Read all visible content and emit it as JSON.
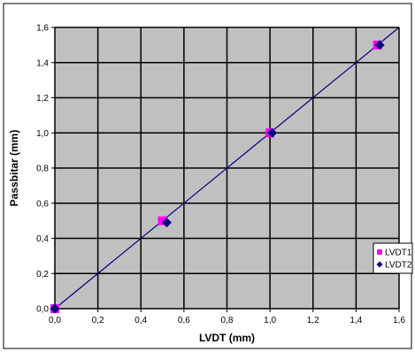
{
  "chart_data": {
    "type": "scatter",
    "xlabel": "LVDT (mm)",
    "ylabel": "Passbitar (mm)",
    "xlim": [
      0,
      1.6
    ],
    "ylim": [
      0,
      1.6
    ],
    "x_ticks": [
      "0,0",
      "0,2",
      "0,4",
      "0,6",
      "0,8",
      "1,0",
      "1,2",
      "1,4",
      "1,6"
    ],
    "y_ticks": [
      "0,0",
      "0,2",
      "0,4",
      "0,6",
      "0,8",
      "1,0",
      "1,2",
      "1,4",
      "1,6"
    ],
    "grid": true,
    "plot_background": "#c0c0c0",
    "legend_position": "right",
    "series": [
      {
        "name": "LVDT1",
        "marker": "square",
        "color": "#ff00ff",
        "points": [
          [
            0.0,
            0.0
          ],
          [
            0.5,
            0.5
          ],
          [
            1.0,
            1.0
          ],
          [
            1.5,
            1.5
          ]
        ]
      },
      {
        "name": "LVDT2",
        "marker": "diamond",
        "color": "#000080",
        "points": [
          [
            0.0,
            0.0
          ],
          [
            0.52,
            0.49
          ],
          [
            1.01,
            1.0
          ],
          [
            1.51,
            1.5
          ]
        ]
      }
    ],
    "trendline": {
      "color": "#000080",
      "from": [
        0.0,
        0.0
      ],
      "to": [
        1.6,
        1.6
      ]
    }
  }
}
